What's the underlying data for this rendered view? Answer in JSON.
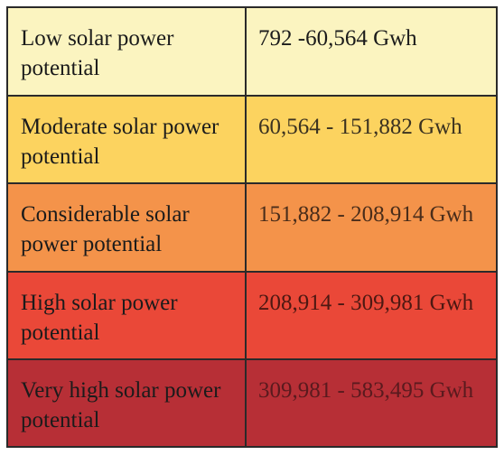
{
  "legend": {
    "rows": [
      {
        "label": "Low solar power potential",
        "range": "792 -60,564 Gwh",
        "color": "#fbf4c0"
      },
      {
        "label": "Moderate solar power potential",
        "range": "60,564 - 151,882 Gwh",
        "color": "#fcd35f"
      },
      {
        "label": "Considerable solar power potential",
        "range": "151,882 - 208,914 Gwh",
        "color": "#f4934a"
      },
      {
        "label": "High solar power potential",
        "range": "208,914 - 309,981 Gwh",
        "color": "#ea4838"
      },
      {
        "label": "Very high solar power potential",
        "range": "309,981 - 583,495 Gwh",
        "color": "#b72f36"
      }
    ]
  }
}
